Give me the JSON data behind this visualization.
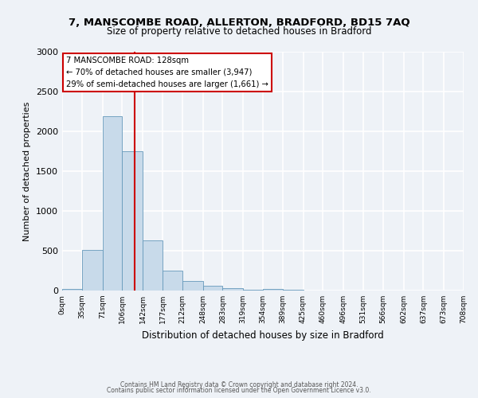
{
  "title1": "7, MANSCOMBE ROAD, ALLERTON, BRADFORD, BD15 7AQ",
  "title2": "Size of property relative to detached houses in Bradford",
  "xlabel": "Distribution of detached houses by size in Bradford",
  "ylabel": "Number of detached properties",
  "bar_color": "#c8daea",
  "bar_edge_color": "#6699bb",
  "bin_edges": [
    0,
    35,
    71,
    106,
    142,
    177,
    212,
    248,
    283,
    319,
    354,
    389,
    425,
    460,
    496,
    531,
    566,
    602,
    637,
    673,
    708
  ],
  "bar_heights": [
    18,
    510,
    2195,
    1750,
    635,
    255,
    120,
    60,
    28,
    10,
    18,
    8,
    3,
    2,
    0,
    0,
    0,
    0,
    0,
    0
  ],
  "tick_labels": [
    "0sqm",
    "35sqm",
    "71sqm",
    "106sqm",
    "142sqm",
    "177sqm",
    "212sqm",
    "248sqm",
    "283sqm",
    "319sqm",
    "354sqm",
    "389sqm",
    "425sqm",
    "460sqm",
    "496sqm",
    "531sqm",
    "566sqm",
    "602sqm",
    "637sqm",
    "673sqm",
    "708sqm"
  ],
  "ylim": [
    0,
    3000
  ],
  "yticks": [
    0,
    500,
    1000,
    1500,
    2000,
    2500,
    3000
  ],
  "property_line_x": 128,
  "annotation_line1": "7 MANSCOMBE ROAD: 128sqm",
  "annotation_line2": "← 70% of detached houses are smaller (3,947)",
  "annotation_line3": "29% of semi-detached houses are larger (1,661) →",
  "annotation_box_color": "#ffffff",
  "annotation_box_edge_color": "#cc0000",
  "line_color": "#cc0000",
  "footer1": "Contains HM Land Registry data © Crown copyright and database right 2024.",
  "footer2": "Contains public sector information licensed under the Open Government Licence v3.0.",
  "background_color": "#eef2f7",
  "grid_color": "#ffffff"
}
